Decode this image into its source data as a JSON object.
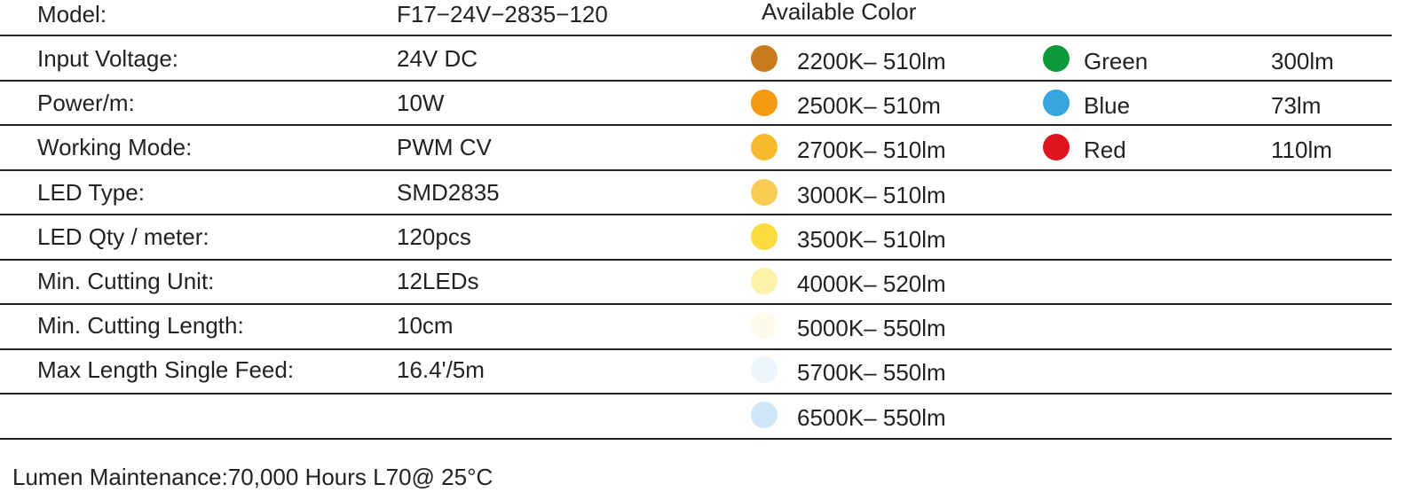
{
  "header": {
    "model_label": "Model:",
    "model_value": "F17−24V−2835−120",
    "available_color": "Available Color"
  },
  "table": {
    "rows": [
      [
        "Input Voltage:",
        "24V DC"
      ],
      [
        "Power/m:",
        "10W"
      ],
      [
        "Working Mode:",
        "PWM CV"
      ],
      [
        "LED Type:",
        "SMD2835"
      ],
      [
        "LED Qty / meter:",
        "120pcs"
      ],
      [
        "Min. Cutting Unit:",
        "12LEDs"
      ],
      [
        "Min. Cutting Length:",
        "10cm"
      ],
      [
        "Max Length Single Feed:",
        "16.4'/5m"
      ]
    ]
  },
  "colors": {
    "cct": [
      {
        "label": "2200K– 510lm",
        "color": "#c87b1c"
      },
      {
        "label": "2500K– 510m",
        "color": "#f39a12"
      },
      {
        "label": "2700K– 510lm",
        "color": "#f8b92c"
      },
      {
        "label": "3000K– 510lm",
        "color": "#f9cc55"
      },
      {
        "label": "3500K– 510lm",
        "color": "#fbdc3c"
      },
      {
        "label": "4000K– 520lm",
        "color": "#fcf2a8"
      },
      {
        "label": "5000K– 550lm",
        "color": "#fdfbec"
      },
      {
        "label": "5700K– 550lm",
        "color": "#eef5fb"
      },
      {
        "label": "6500K– 550lm",
        "color": "#cfe6f6"
      }
    ],
    "rgb": [
      {
        "name": "Green",
        "lumen": "300lm",
        "color": "#0a9a3c"
      },
      {
        "name": "Blue",
        "lumen": "73lm",
        "color": "#36a6e0"
      },
      {
        "name": "Red",
        "lumen": "110lm",
        "color": "#e0141e"
      }
    ]
  },
  "footer": "Lumen Maintenance:70,000 Hours L70@ 25°C"
}
